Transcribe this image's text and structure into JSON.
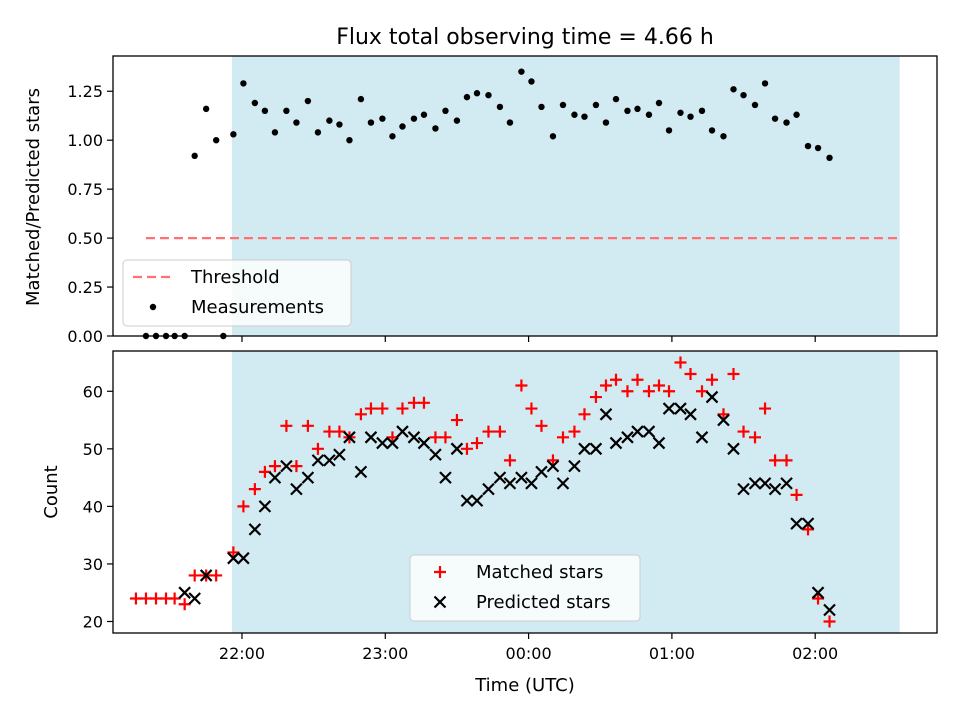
{
  "chart_data": [
    {
      "type": "scatter",
      "title": "Flux total observing time = 4.66 h",
      "ylabel": "Matched/Predicted stars",
      "ylim": [
        0,
        1.43
      ],
      "yticks": [
        0.0,
        0.25,
        0.5,
        0.75,
        1.0,
        1.25
      ],
      "ytick_labels": [
        "0.00",
        "0.25",
        "0.50",
        "0.75",
        "1.00",
        "1.25"
      ],
      "xlim_hours": [
        -2.9,
        2.85
      ],
      "shaded_span_hours": [
        -2.07,
        2.59
      ],
      "shade_color": "#add8e6",
      "legend": "lower-left",
      "threshold": {
        "name": "Threshold",
        "value": 0.5,
        "x_range_hours": [
          -2.67,
          2.59
        ],
        "color": "#ff7070"
      },
      "series": [
        {
          "name": "Measurements",
          "marker": "dot",
          "color": "#000000",
          "points": [
            [
              -2.67,
              0
            ],
            [
              -2.6,
              0
            ],
            [
              -2.53,
              0
            ],
            [
              -2.47,
              0
            ],
            [
              -2.4,
              0
            ],
            [
              -2.33,
              0.92
            ],
            [
              -2.25,
              1.16
            ],
            [
              -2.18,
              1.0
            ],
            [
              -2.13,
              0
            ],
            [
              -2.06,
              1.03
            ],
            [
              -1.99,
              1.29
            ],
            [
              -1.91,
              1.19
            ],
            [
              -1.84,
              1.15
            ],
            [
              -1.77,
              1.04
            ],
            [
              -1.69,
              1.15
            ],
            [
              -1.62,
              1.09
            ],
            [
              -1.54,
              1.2
            ],
            [
              -1.47,
              1.04
            ],
            [
              -1.39,
              1.1
            ],
            [
              -1.32,
              1.08
            ],
            [
              -1.25,
              1.0
            ],
            [
              -1.17,
              1.21
            ],
            [
              -1.1,
              1.09
            ],
            [
              -1.02,
              1.11
            ],
            [
              -0.95,
              1.02
            ],
            [
              -0.88,
              1.07
            ],
            [
              -0.8,
              1.11
            ],
            [
              -0.73,
              1.13
            ],
            [
              -0.65,
              1.06
            ],
            [
              -0.58,
              1.15
            ],
            [
              -0.5,
              1.1
            ],
            [
              -0.43,
              1.22
            ],
            [
              -0.36,
              1.24
            ],
            [
              -0.28,
              1.23
            ],
            [
              -0.2,
              1.17
            ],
            [
              -0.13,
              1.09
            ],
            [
              -0.05,
              1.35
            ],
            [
              0.02,
              1.3
            ],
            [
              0.09,
              1.17
            ],
            [
              0.17,
              1.02
            ],
            [
              0.24,
              1.18
            ],
            [
              0.32,
              1.13
            ],
            [
              0.39,
              1.12
            ],
            [
              0.47,
              1.18
            ],
            [
              0.54,
              1.09
            ],
            [
              0.61,
              1.21
            ],
            [
              0.69,
              1.15
            ],
            [
              0.76,
              1.16
            ],
            [
              0.84,
              1.13
            ],
            [
              0.91,
              1.19
            ],
            [
              0.98,
              1.05
            ],
            [
              1.06,
              1.14
            ],
            [
              1.13,
              1.12
            ],
            [
              1.21,
              1.15
            ],
            [
              1.28,
              1.05
            ],
            [
              1.36,
              1.02
            ],
            [
              1.43,
              1.26
            ],
            [
              1.5,
              1.23
            ],
            [
              1.58,
              1.18
            ],
            [
              1.65,
              1.29
            ],
            [
              1.72,
              1.11
            ],
            [
              1.8,
              1.09
            ],
            [
              1.87,
              1.13
            ],
            [
              1.95,
              0.97
            ],
            [
              2.02,
              0.96
            ],
            [
              2.1,
              0.91
            ]
          ]
        }
      ]
    },
    {
      "type": "scatter",
      "xlabel": "Time (UTC)",
      "ylabel": "Count",
      "ylim": [
        18,
        67
      ],
      "yticks": [
        20,
        30,
        40,
        50,
        60
      ],
      "ytick_labels": [
        "20",
        "30",
        "40",
        "50",
        "60"
      ],
      "xlim_hours": [
        -2.9,
        2.85
      ],
      "xticks_hours": [
        -2,
        -1,
        0,
        1,
        2
      ],
      "xtick_labels": [
        "22:00",
        "23:00",
        "00:00",
        "01:00",
        "02:00"
      ],
      "shaded_span_hours": [
        -2.07,
        2.59
      ],
      "shade_color": "#add8e6",
      "legend": "lower-center",
      "series": [
        {
          "name": "Matched stars",
          "marker": "plus",
          "color": "#ff0000",
          "points": [
            [
              -2.74,
              24
            ],
            [
              -2.67,
              24
            ],
            [
              -2.6,
              24
            ],
            [
              -2.53,
              24
            ],
            [
              -2.47,
              24
            ],
            [
              -2.4,
              23
            ],
            [
              -2.33,
              28
            ],
            [
              -2.25,
              28
            ],
            [
              -2.18,
              28
            ],
            [
              -2.06,
              32
            ],
            [
              -1.99,
              40
            ],
            [
              -1.91,
              43
            ],
            [
              -1.84,
              46
            ],
            [
              -1.77,
              47
            ],
            [
              -1.69,
              54
            ],
            [
              -1.62,
              47
            ],
            [
              -1.54,
              54
            ],
            [
              -1.47,
              50
            ],
            [
              -1.39,
              53
            ],
            [
              -1.32,
              53
            ],
            [
              -1.25,
              52
            ],
            [
              -1.17,
              56
            ],
            [
              -1.1,
              57
            ],
            [
              -1.02,
              57
            ],
            [
              -0.95,
              52
            ],
            [
              -0.88,
              57
            ],
            [
              -0.8,
              58
            ],
            [
              -0.73,
              58
            ],
            [
              -0.65,
              52
            ],
            [
              -0.58,
              52
            ],
            [
              -0.5,
              55
            ],
            [
              -0.43,
              50
            ],
            [
              -0.36,
              51
            ],
            [
              -0.28,
              53
            ],
            [
              -0.2,
              53
            ],
            [
              -0.13,
              48
            ],
            [
              -0.05,
              61
            ],
            [
              0.02,
              57
            ],
            [
              0.09,
              54
            ],
            [
              0.17,
              48
            ],
            [
              0.24,
              52
            ],
            [
              0.32,
              53
            ],
            [
              0.39,
              56
            ],
            [
              0.47,
              59
            ],
            [
              0.54,
              61
            ],
            [
              0.61,
              62
            ],
            [
              0.69,
              60
            ],
            [
              0.76,
              62
            ],
            [
              0.84,
              60
            ],
            [
              0.91,
              61
            ],
            [
              0.98,
              60
            ],
            [
              1.06,
              65
            ],
            [
              1.13,
              63
            ],
            [
              1.21,
              60
            ],
            [
              1.28,
              62
            ],
            [
              1.36,
              56
            ],
            [
              1.43,
              63
            ],
            [
              1.5,
              53
            ],
            [
              1.58,
              52
            ],
            [
              1.65,
              57
            ],
            [
              1.72,
              48
            ],
            [
              1.8,
              48
            ],
            [
              1.87,
              42
            ],
            [
              1.95,
              36
            ],
            [
              2.02,
              24
            ],
            [
              2.1,
              20
            ]
          ]
        },
        {
          "name": "Predicted stars",
          "marker": "x",
          "color": "#000000",
          "points": [
            [
              -2.4,
              25
            ],
            [
              -2.33,
              24
            ],
            [
              -2.25,
              28
            ],
            [
              -2.06,
              31
            ],
            [
              -1.99,
              31
            ],
            [
              -1.91,
              36
            ],
            [
              -1.84,
              40
            ],
            [
              -1.77,
              45
            ],
            [
              -1.69,
              47
            ],
            [
              -1.62,
              43
            ],
            [
              -1.54,
              45
            ],
            [
              -1.47,
              48
            ],
            [
              -1.39,
              48
            ],
            [
              -1.32,
              49
            ],
            [
              -1.25,
              52
            ],
            [
              -1.17,
              46
            ],
            [
              -1.1,
              52
            ],
            [
              -1.02,
              51
            ],
            [
              -0.95,
              51
            ],
            [
              -0.88,
              53
            ],
            [
              -0.8,
              52
            ],
            [
              -0.73,
              51
            ],
            [
              -0.65,
              49
            ],
            [
              -0.58,
              45
            ],
            [
              -0.5,
              50
            ],
            [
              -0.43,
              41
            ],
            [
              -0.36,
              41
            ],
            [
              -0.28,
              43
            ],
            [
              -0.2,
              45
            ],
            [
              -0.13,
              44
            ],
            [
              -0.05,
              45
            ],
            [
              0.02,
              44
            ],
            [
              0.09,
              46
            ],
            [
              0.17,
              47
            ],
            [
              0.24,
              44
            ],
            [
              0.32,
              47
            ],
            [
              0.39,
              50
            ],
            [
              0.47,
              50
            ],
            [
              0.54,
              56
            ],
            [
              0.61,
              51
            ],
            [
              0.69,
              52
            ],
            [
              0.76,
              53
            ],
            [
              0.84,
              53
            ],
            [
              0.91,
              51
            ],
            [
              0.98,
              57
            ],
            [
              1.06,
              57
            ],
            [
              1.13,
              56
            ],
            [
              1.21,
              52
            ],
            [
              1.28,
              59
            ],
            [
              1.36,
              55
            ],
            [
              1.43,
              50
            ],
            [
              1.5,
              43
            ],
            [
              1.58,
              44
            ],
            [
              1.65,
              44
            ],
            [
              1.72,
              43
            ],
            [
              1.8,
              44
            ],
            [
              1.87,
              37
            ],
            [
              1.95,
              37
            ],
            [
              2.02,
              25
            ],
            [
              2.1,
              22
            ]
          ]
        }
      ]
    }
  ]
}
